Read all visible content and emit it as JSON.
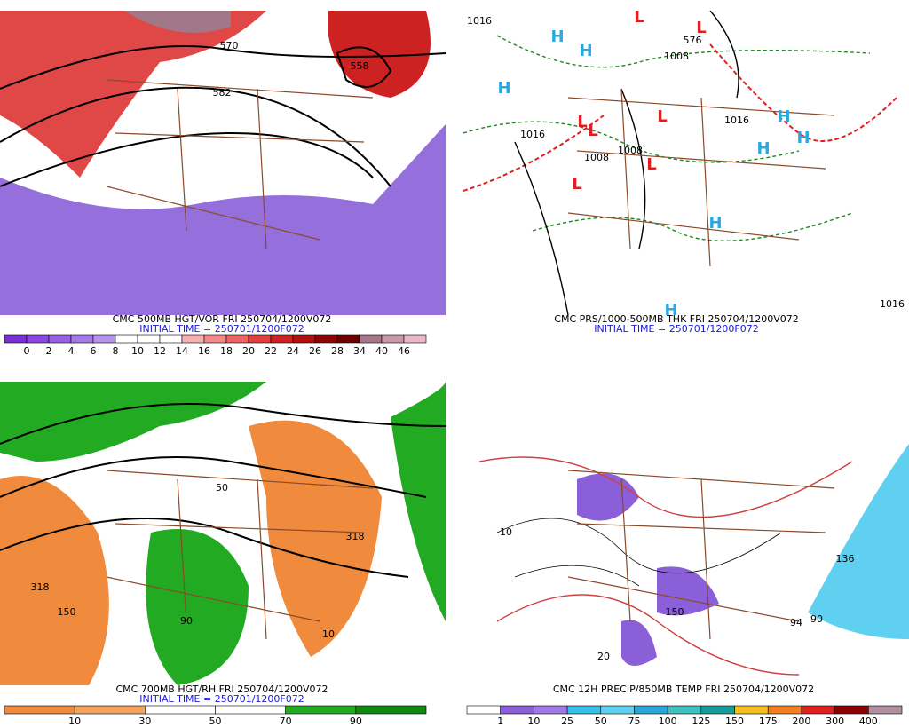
{
  "panels": [
    {
      "title": "CMC 500MB HGT/VOR FRI 250704/1200V072",
      "subtitle": "INITIAL TIME = 250701/1200F072",
      "colorbar": {
        "labels": [
          "0",
          "2",
          "4",
          "6",
          "8",
          "10",
          "12",
          "14",
          "16",
          "18",
          "20",
          "22",
          "24",
          "26",
          "28",
          "34",
          "40",
          "46"
        ],
        "colors": [
          "#7a2fd8",
          "#8a48e0",
          "#9960e4",
          "#a57ae8",
          "#b794ec",
          "#ffffff",
          "#ffffff",
          "#ffffff",
          "#f7b0b0",
          "#f28a8a",
          "#ec6464",
          "#e04040",
          "#cc2222",
          "#b01010",
          "#8c0606",
          "#6e0000",
          "#a87888",
          "#c89aa8",
          "#e8b8c8"
        ]
      },
      "labels": [
        {
          "text": "570",
          "color": "#000"
        },
        {
          "text": "582",
          "color": "#000"
        },
        {
          "text": "558",
          "color": "#000"
        }
      ]
    },
    {
      "title": "CMC PRS/1000-500MB THK FRI 250704/1200V072",
      "subtitle": "INITIAL TIME = 250701/1200F072",
      "labels": [
        {
          "text": "1016",
          "color": "#000"
        },
        {
          "text": "1008",
          "color": "#000"
        },
        {
          "text": "1008",
          "color": "#000"
        },
        {
          "text": "1016",
          "color": "#000"
        },
        {
          "text": "1016",
          "color": "#000"
        },
        {
          "text": "1008",
          "color": "#000"
        },
        {
          "text": "576",
          "color": "#d01010"
        },
        {
          "text": "1016",
          "color": "#000"
        },
        {
          "text": "H",
          "color": "#2aa8e0"
        },
        {
          "text": "H",
          "color": "#2aa8e0"
        },
        {
          "text": "H",
          "color": "#2aa8e0"
        },
        {
          "text": "H",
          "color": "#2aa8e0"
        },
        {
          "text": "H",
          "color": "#2aa8e0"
        },
        {
          "text": "H",
          "color": "#2aa8e0"
        },
        {
          "text": "H",
          "color": "#2aa8e0"
        },
        {
          "text": "H",
          "color": "#2aa8e0"
        },
        {
          "text": "L",
          "color": "#dd2020"
        },
        {
          "text": "L",
          "color": "#dd2020"
        },
        {
          "text": "L",
          "color": "#dd2020"
        },
        {
          "text": "L",
          "color": "#dd2020"
        },
        {
          "text": "L",
          "color": "#dd2020"
        },
        {
          "text": "L",
          "color": "#dd2020"
        },
        {
          "text": "L",
          "color": "#dd2020"
        }
      ]
    },
    {
      "title": "CMC 700MB HGT/RH FRI 250704/1200V072",
      "subtitle": "INITIAL TIME = 250701/1200F072",
      "colorbar": {
        "labels": [
          "10",
          "30",
          "50",
          "70",
          "90"
        ],
        "colors": [
          "#f08a3c",
          "#f4a460",
          "#ffffff",
          "#ffffff",
          "#22aa22",
          "#118811"
        ]
      },
      "labels": [
        {
          "text": "318",
          "color": "#000"
        },
        {
          "text": "150",
          "color": "#000"
        },
        {
          "text": "50",
          "color": "#000"
        },
        {
          "text": "90",
          "color": "#000"
        },
        {
          "text": "318",
          "color": "#000"
        },
        {
          "text": "10",
          "color": "#000"
        }
      ]
    },
    {
      "title": "CMC 12H PRECIP/850MB TEMP FRI 250704/1200V072",
      "colorbar": {
        "labels": [
          "1",
          "10",
          "25",
          "50",
          "75",
          "100",
          "125",
          "150",
          "175",
          "200",
          "300",
          "400"
        ],
        "colors": [
          "#ffffff",
          "#8a5fd8",
          "#a07be8",
          "#35c0e8",
          "#5fd0f0",
          "#2aa6d8",
          "#3fc1bf",
          "#1a9a9a",
          "#f0c020",
          "#f08020",
          "#e02020",
          "#8b0000",
          "#b090a0"
        ]
      },
      "labels": [
        {
          "text": "150",
          "color": "#000"
        },
        {
          "text": "94",
          "color": "#000"
        },
        {
          "text": "136",
          "color": "#000"
        },
        {
          "text": "20",
          "color": "#d03030"
        },
        {
          "text": "10",
          "color": "#d03030"
        },
        {
          "text": "90",
          "color": "#000"
        }
      ]
    }
  ]
}
